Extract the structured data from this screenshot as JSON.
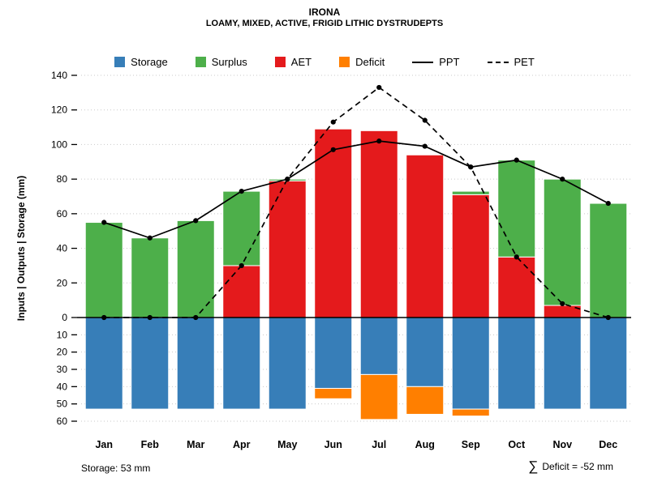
{
  "header": {
    "title": "IRONA",
    "subtitle": "LOAMY, MIXED, ACTIVE, FRIGID LITHIC DYSTRUDEPTS"
  },
  "footer": {
    "storage_note": "Storage: 53 mm",
    "sum_symbol": "∑",
    "deficit_note": "Deficit = -52 mm"
  },
  "chart_data": {
    "type": "bar",
    "title": "IRONA",
    "subtitle": "LOAMY, MIXED, ACTIVE, FRIGID LITHIC DYSTRUDEPTS",
    "ylabel": "Inputs | Outputs | Storage   (mm)",
    "xlabel": "",
    "categories": [
      "Jan",
      "Feb",
      "Mar",
      "Apr",
      "May",
      "Jun",
      "Jul",
      "Aug",
      "Sep",
      "Oct",
      "Nov",
      "Dec"
    ],
    "ylim_top": [
      0,
      140
    ],
    "ylim_bottom": [
      0,
      60
    ],
    "yticks_top": [
      0,
      20,
      40,
      60,
      80,
      100,
      120,
      140
    ],
    "yticks_bottom": [
      10,
      20,
      30,
      40,
      50,
      60
    ],
    "grid": true,
    "legend_position": "top",
    "series": [
      {
        "name": "Storage",
        "type": "bar-down",
        "color": "#377EB8",
        "values": [
          53,
          53,
          53,
          53,
          53,
          41,
          33,
          40,
          53,
          53,
          53,
          53
        ]
      },
      {
        "name": "Deficit",
        "type": "bar-down-stacked",
        "color": "#FF7F00",
        "values": [
          0,
          0,
          0,
          0,
          0,
          6,
          26,
          16,
          4,
          0,
          0,
          0
        ]
      },
      {
        "name": "AET",
        "type": "bar-up",
        "color": "#E41A1C",
        "values": [
          0,
          0,
          0,
          30,
          79,
          109,
          108,
          94,
          71,
          35,
          7,
          0
        ]
      },
      {
        "name": "Surplus",
        "type": "bar-up-stacked",
        "color": "#4DAF4A",
        "values": [
          55,
          46,
          56,
          43,
          1,
          0,
          0,
          0,
          2,
          56,
          73,
          66
        ]
      },
      {
        "name": "PPT",
        "type": "line",
        "line_style": "solid",
        "color": "#000000",
        "marker": "circle",
        "values": [
          55,
          46,
          56,
          73,
          80,
          97,
          102,
          99,
          87,
          91,
          80,
          66
        ]
      },
      {
        "name": "PET",
        "type": "line",
        "line_style": "dashed",
        "color": "#000000",
        "marker": "circle",
        "values": [
          0,
          0,
          0,
          30,
          80,
          113,
          133,
          114,
          87,
          35,
          8,
          0
        ]
      }
    ],
    "legend": [
      {
        "label": "Storage",
        "color": "#377EB8",
        "sample": "swatch"
      },
      {
        "label": "Surplus",
        "color": "#4DAF4A",
        "sample": "swatch"
      },
      {
        "label": "AET",
        "color": "#E41A1C",
        "sample": "swatch"
      },
      {
        "label": "Deficit",
        "color": "#FF7F00",
        "sample": "swatch"
      },
      {
        "label": "PPT",
        "color": "#000000",
        "sample": "line-solid"
      },
      {
        "label": "PET",
        "color": "#000000",
        "sample": "line-dashed"
      }
    ]
  }
}
